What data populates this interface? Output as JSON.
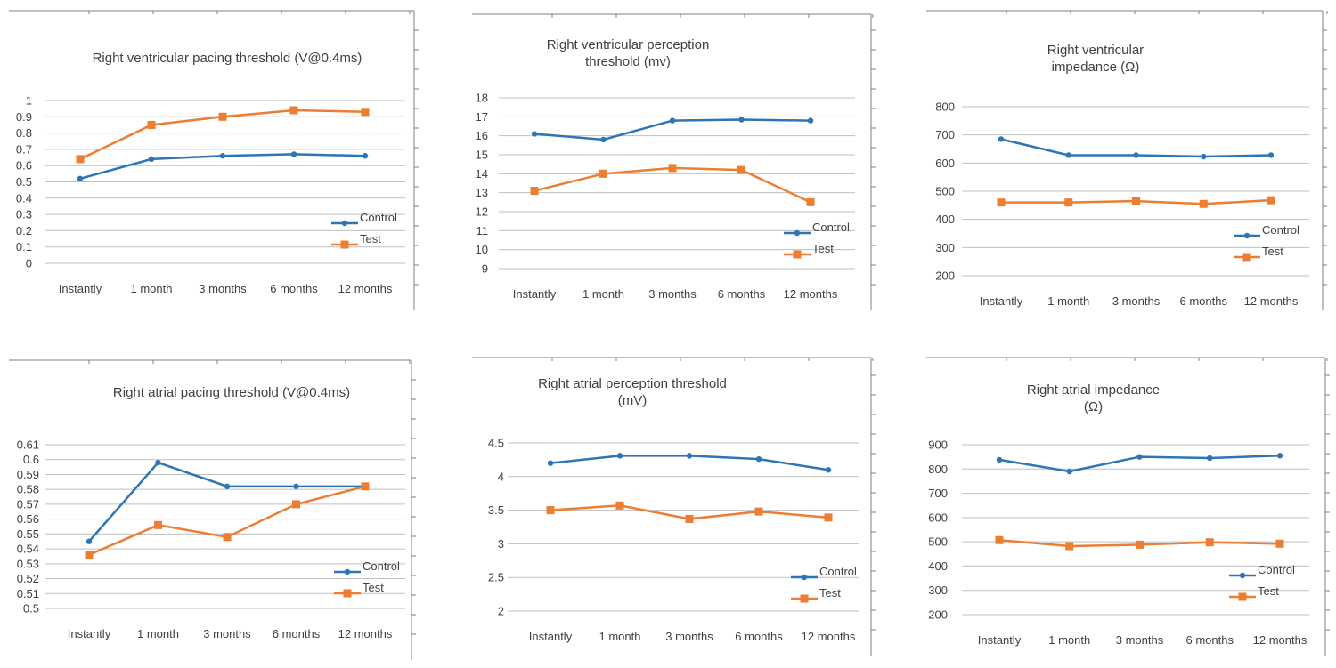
{
  "colors": {
    "control": "#2e75b6",
    "test": "#ed7d31",
    "grid": "#bfbfbf",
    "text": "#404040"
  },
  "chart_data": [
    {
      "type": "line",
      "title": "Right ventricular pacing threshold (V@0.4ms)",
      "categories": [
        "Instantly",
        "1 month",
        "3 months",
        "6 months",
        "12 months"
      ],
      "yticks": [
        "0",
        "0.1",
        "0.2",
        "0.3",
        "0.4",
        "0.5",
        "0.6",
        "0.7",
        "0.8",
        "0.9",
        "1"
      ],
      "ylim": [
        0,
        1
      ],
      "grid": true,
      "legend_position": "right",
      "series": [
        {
          "name": "Control",
          "values": [
            0.52,
            0.64,
            0.66,
            0.67,
            0.66
          ]
        },
        {
          "name": "Test",
          "values": [
            0.64,
            0.85,
            0.9,
            0.94,
            0.93
          ]
        }
      ]
    },
    {
      "type": "line",
      "title": "Right ventricular perception\nthreshold (mv)",
      "categories": [
        "Instantly",
        "1 month",
        "3 months",
        "6 months",
        "12 months"
      ],
      "yticks": [
        "9",
        "10",
        "11",
        "12",
        "13",
        "14",
        "15",
        "16",
        "17",
        "18"
      ],
      "ylim": [
        9,
        18
      ],
      "grid": true,
      "legend_position": "right",
      "series": [
        {
          "name": "Control",
          "values": [
            16.1,
            15.8,
            16.8,
            16.85,
            16.8
          ]
        },
        {
          "name": "Test",
          "values": [
            13.1,
            14.0,
            14.3,
            14.2,
            12.5
          ]
        }
      ]
    },
    {
      "type": "line",
      "title": "Right ventricular\nimpedance (Ω)",
      "categories": [
        "Instantly",
        "1 month",
        "3 months",
        "6 months",
        "12 months"
      ],
      "yticks": [
        "200",
        "300",
        "400",
        "500",
        "600",
        "700",
        "800"
      ],
      "ylim": [
        200,
        800
      ],
      "grid": true,
      "legend_position": "right",
      "series": [
        {
          "name": "Control",
          "values": [
            685,
            628,
            628,
            623,
            628
          ]
        },
        {
          "name": "Test",
          "values": [
            460,
            460,
            465,
            455,
            468
          ]
        }
      ]
    },
    {
      "type": "line",
      "title": "Right atrial pacing threshold (V@0.4ms)",
      "categories": [
        "Instantly",
        "1 month",
        "3 months",
        "6 months",
        "12 months"
      ],
      "yticks": [
        "0.5",
        "0.51",
        "0.52",
        "0.53",
        "0.54",
        "0.55",
        "0.56",
        "0.57",
        "0.58",
        "0.59",
        "0.6",
        "0.61"
      ],
      "ylim": [
        0.5,
        0.61
      ],
      "grid": true,
      "legend_position": "right",
      "series": [
        {
          "name": "Control",
          "values": [
            0.545,
            0.598,
            0.582,
            0.582,
            0.582
          ]
        },
        {
          "name": "Test",
          "values": [
            0.536,
            0.556,
            0.548,
            0.57,
            0.582
          ]
        }
      ]
    },
    {
      "type": "line",
      "title": "Right atrial perception threshold\n(mV)",
      "categories": [
        "Instantly",
        "1 month",
        "3 months",
        "6 months",
        "12 months"
      ],
      "yticks": [
        "2",
        "2.5",
        "3",
        "3.5",
        "4",
        "4.5"
      ],
      "ylim": [
        2,
        4.5
      ],
      "grid": true,
      "legend_position": "right",
      "series": [
        {
          "name": "Control",
          "values": [
            4.2,
            4.31,
            4.31,
            4.26,
            4.1
          ]
        },
        {
          "name": "Test",
          "values": [
            3.5,
            3.57,
            3.37,
            3.48,
            3.39
          ]
        }
      ]
    },
    {
      "type": "line",
      "title": "Right atrial impedance\n(Ω)",
      "categories": [
        "Instantly",
        "1 month",
        "3 months",
        "6 months",
        "12 months"
      ],
      "yticks": [
        "200",
        "300",
        "400",
        "500",
        "600",
        "700",
        "800",
        "900"
      ],
      "ylim": [
        200,
        900
      ],
      "grid": true,
      "legend_position": "right",
      "series": [
        {
          "name": "Control",
          "values": [
            838,
            790,
            850,
            845,
            855
          ]
        },
        {
          "name": "Test",
          "values": [
            507,
            482,
            488,
            498,
            492
          ]
        }
      ]
    }
  ]
}
